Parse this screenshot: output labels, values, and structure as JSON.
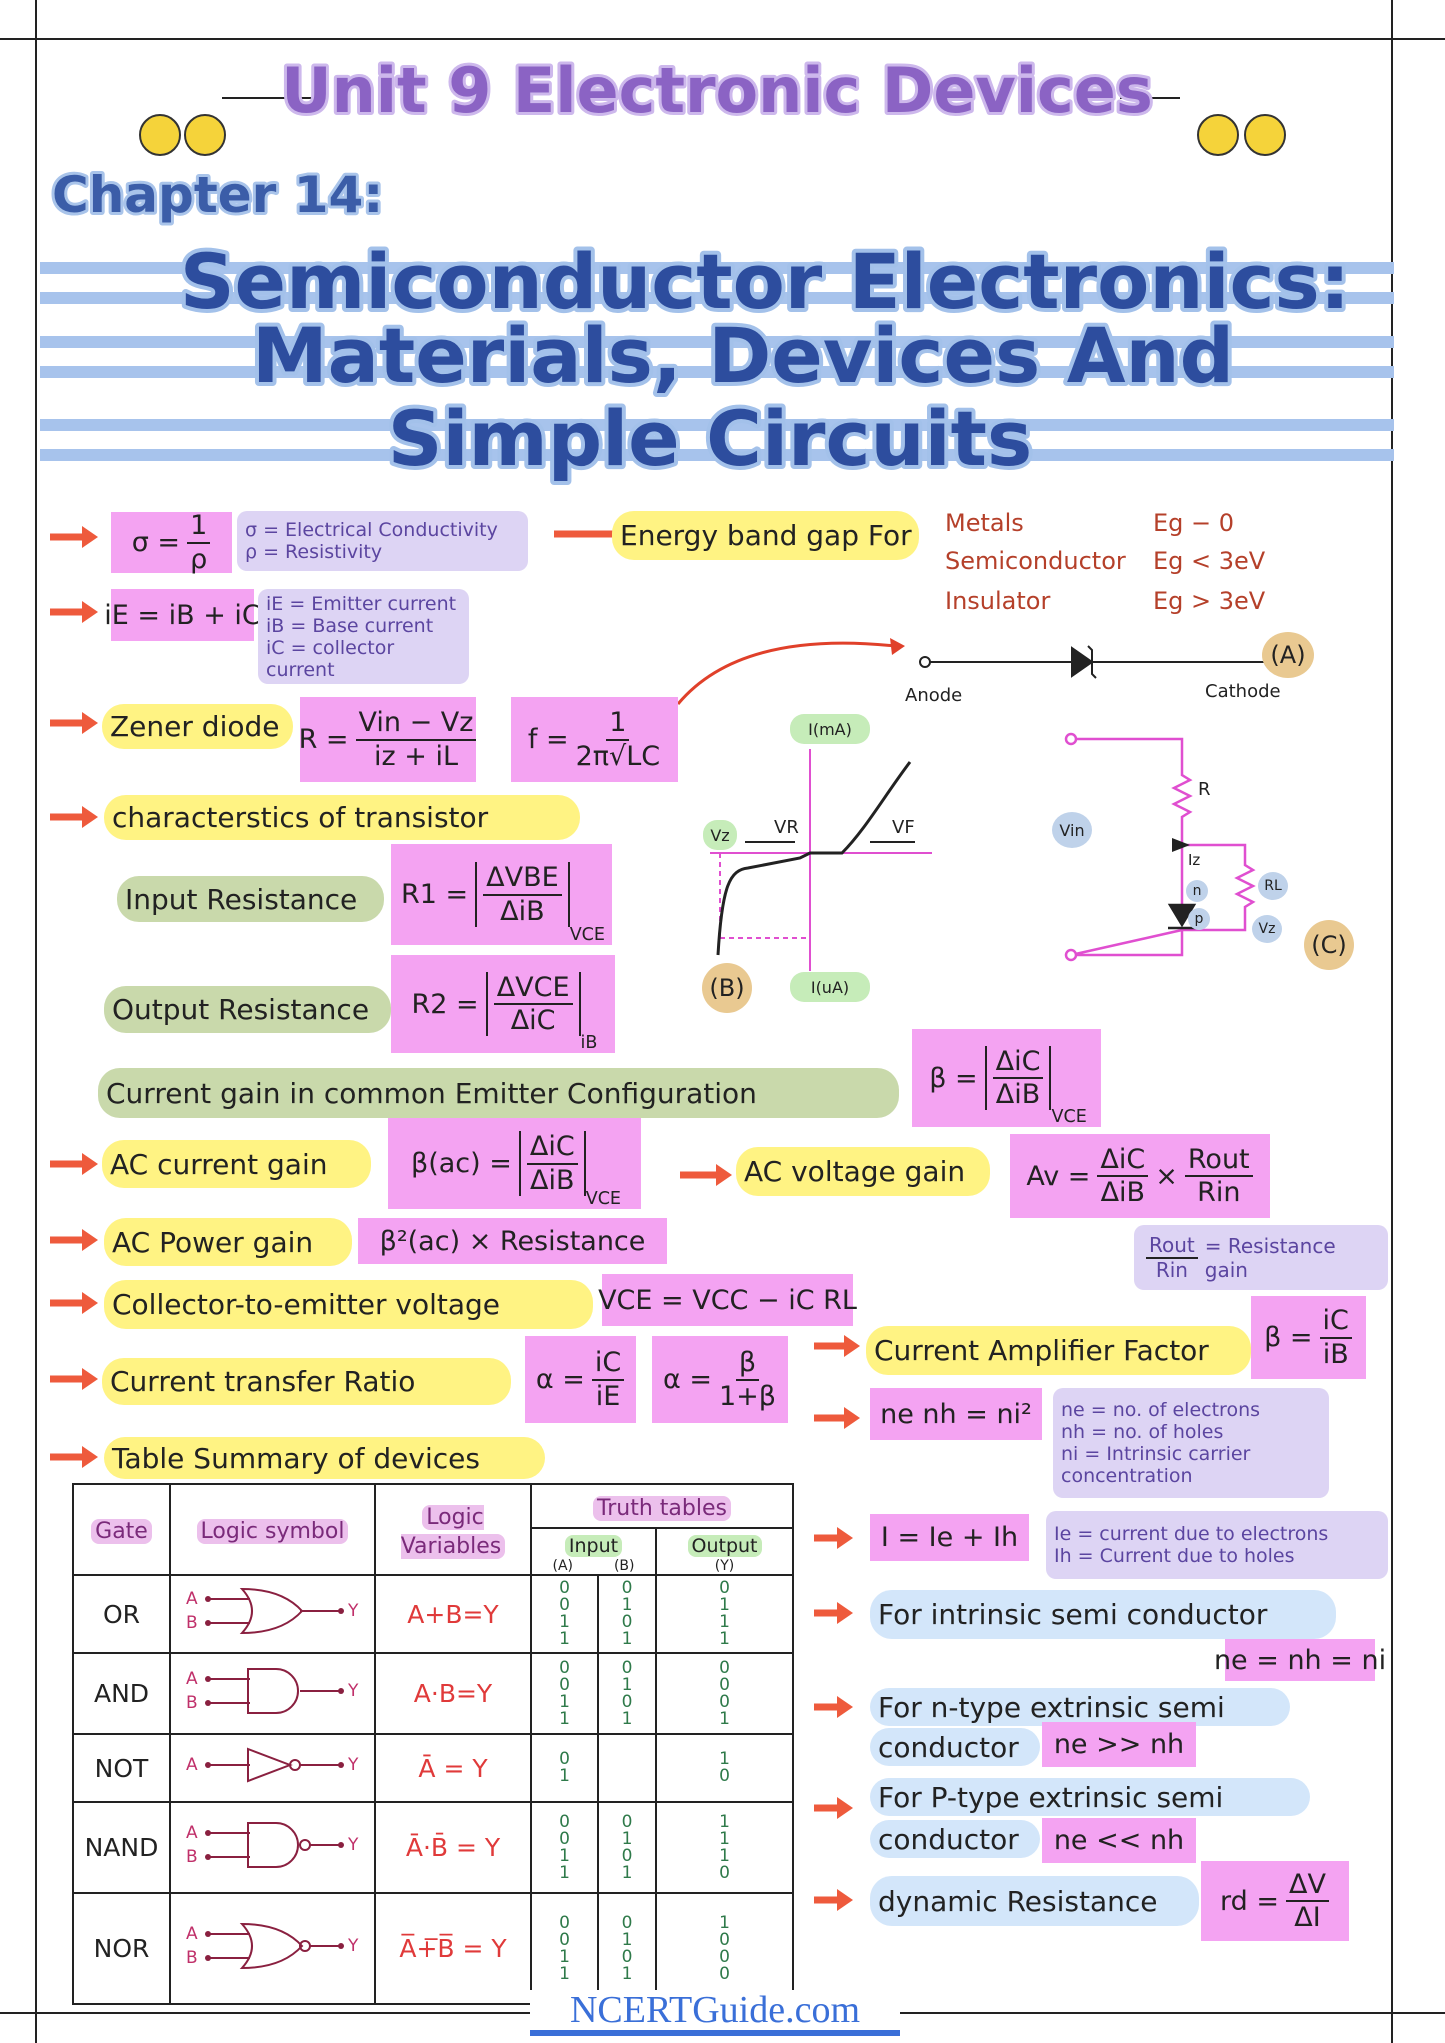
{
  "header": {
    "unit": "Unit 9 Electronic Devices",
    "chapter": "Chapter 14:",
    "title": [
      "Semiconductor Electronics:",
      "Materials, Devices And",
      "Simple Circuits"
    ]
  },
  "conductivity": {
    "formula": [
      "σ =",
      {
        "num": "1",
        "den": "ρ"
      }
    ],
    "notes": [
      "σ = Electrical Conductivity",
      "ρ = Resistivity"
    ]
  },
  "emitter_current": {
    "formula": [
      "iE = iB + iC"
    ],
    "notes": [
      "iE = Emitter current",
      "iB = Base current",
      "iC = collector current"
    ]
  },
  "band_gap": {
    "label": "Energy band gap For",
    "rows": [
      [
        "Metals",
        "Eg − 0"
      ],
      [
        "Semiconductor",
        "Eg < 3eV"
      ],
      [
        "Insulator",
        "Eg > 3eV"
      ]
    ]
  },
  "diode_a": {
    "anode": "Anode",
    "cathode": "Cathode",
    "tag": "(A)"
  },
  "zener": {
    "label": "Zener diode",
    "formula": [
      "R =",
      {
        "num": "Vin − Vz",
        "den": "iz + iL"
      }
    ],
    "frequency": [
      "f =",
      {
        "num": "1",
        "den": "2π√LC"
      }
    ]
  },
  "graph_b": {
    "y_top": "I(mA)",
    "y_bottom": "I(uA)",
    "vz": "Vz",
    "vr": "VR",
    "vf": "VF",
    "tag": "(B)"
  },
  "circuit_c": {
    "vin": "Vin",
    "r": "R",
    "iz": "Iz",
    "rl": "RL",
    "n": "n",
    "p": "p",
    "vz": "Vz",
    "tag": "(C)"
  },
  "transistor": {
    "label": "characterstics of transistor",
    "input": {
      "label": "Input Resistance",
      "formula": [
        "R1 =",
        {
          "num": "ΔVBE",
          "den": "ΔiB",
          "sub": "VCE"
        }
      ]
    },
    "output": {
      "label": "Output Resistance",
      "formula": [
        "R2 =",
        {
          "num": "ΔVCE",
          "den": "ΔiC",
          "sub": "iB"
        }
      ]
    }
  },
  "ce_gain": {
    "label": "Current gain in common Emitter Configuration",
    "formula": [
      "β =",
      {
        "num": "ΔiC",
        "den": "ΔiB",
        "sub": "VCE"
      }
    ]
  },
  "ac_current_gain": {
    "label": "AC current gain",
    "formula": [
      "β(ac) =",
      {
        "num": "ΔiC",
        "den": "ΔiB",
        "sub": "VCE"
      }
    ]
  },
  "ac_voltage_gain": {
    "label": "AC voltage gain",
    "formula": [
      "Av =",
      {
        "num": "ΔiC",
        "den": "ΔiB"
      },
      "×",
      {
        "num": "Rout",
        "den": "Rin"
      }
    ],
    "note": [
      {
        "num": "Rout",
        "den": "Rin"
      },
      "= Resistance gain"
    ]
  },
  "ac_power_gain": {
    "label": "AC Power gain",
    "formula": [
      "β²(ac) × Resistance"
    ]
  },
  "vce": {
    "label": "Collector-to-emitter voltage",
    "formula": [
      "VCE = VCC − iC RL"
    ]
  },
  "transfer_ratio": {
    "label": "Current transfer Ratio",
    "formula": [
      "α =",
      {
        "num": "iC",
        "den": "iE"
      }
    ],
    "formula2": [
      "α =",
      {
        "num": "β",
        "den": "1+β"
      }
    ]
  },
  "amplifier_factor": {
    "label": "Current Amplifier Factor",
    "formula": [
      "β =",
      {
        "num": "iC",
        "den": "iB"
      }
    ]
  },
  "carriers": {
    "formula": [
      "ne nh = ni²"
    ],
    "notes": [
      "ne = no. of electrons",
      "nh = no. of holes",
      "ni = Intrinsic carrier concentration"
    ]
  },
  "table": {
    "label": "Table Summary of devices",
    "headers": [
      "Gate",
      "Logic symbol",
      "Logic Variables",
      "Truth tables"
    ],
    "subheaders": [
      "Input",
      "Output"
    ],
    "columns": [
      "(A)",
      "(B)",
      "(Y)"
    ],
    "pins": [
      "A",
      "B",
      "Y"
    ],
    "rows": [
      {
        "gate": "OR",
        "shape": "curved",
        "bubble": false,
        "variables": "A+B=Y",
        "a": [
          0,
          0,
          1,
          1
        ],
        "b": [
          0,
          1,
          0,
          1
        ],
        "y": [
          0,
          1,
          1,
          1
        ]
      },
      {
        "gate": "AND",
        "shape": "flat",
        "bubble": false,
        "variables": "A·B=Y",
        "a": [
          0,
          0,
          1,
          1
        ],
        "b": [
          0,
          1,
          0,
          1
        ],
        "y": [
          0,
          0,
          0,
          1
        ]
      },
      {
        "gate": "NOT",
        "shape": "triangle",
        "bubble": true,
        "variables": "Ā = Y",
        "a": [
          0,
          1
        ],
        "y": [
          1,
          0
        ]
      },
      {
        "gate": "NAND",
        "shape": "flat",
        "bubble": true,
        "variables": "Ā·B̄ = Y",
        "a": [
          0,
          0,
          1,
          1
        ],
        "b": [
          0,
          1,
          0,
          1
        ],
        "y": [
          1,
          1,
          1,
          0
        ]
      },
      {
        "gate": "NOR",
        "shape": "curved",
        "bubble": true,
        "variables": "A̅+̅B̅ = Y",
        "a": [
          0,
          0,
          1,
          1
        ],
        "b": [
          0,
          1,
          0,
          1
        ],
        "y": [
          1,
          0,
          0,
          0
        ]
      }
    ]
  },
  "current": {
    "formula": [
      "I = Ie + Ih"
    ],
    "notes": [
      "Ie = current due to electrons",
      "Ih = Current due to holes"
    ]
  },
  "intrinsic": {
    "label": "For intrinsic semi conductor",
    "formula": [
      "ne = nh = ni"
    ]
  },
  "n_type": {
    "label": [
      "For n-type extrinsic semi",
      "conductor"
    ],
    "formula": [
      "ne >> nh"
    ]
  },
  "p_type": {
    "label": [
      "For P-type extrinsic semi",
      "conductor"
    ],
    "formula": [
      "ne << nh"
    ]
  },
  "dynamic": {
    "label": "dynamic Resistance",
    "formula": [
      "rd =",
      {
        "num": "ΔV",
        "den": "ΔI"
      }
    ]
  },
  "footer": "NCERTGuide.com"
}
